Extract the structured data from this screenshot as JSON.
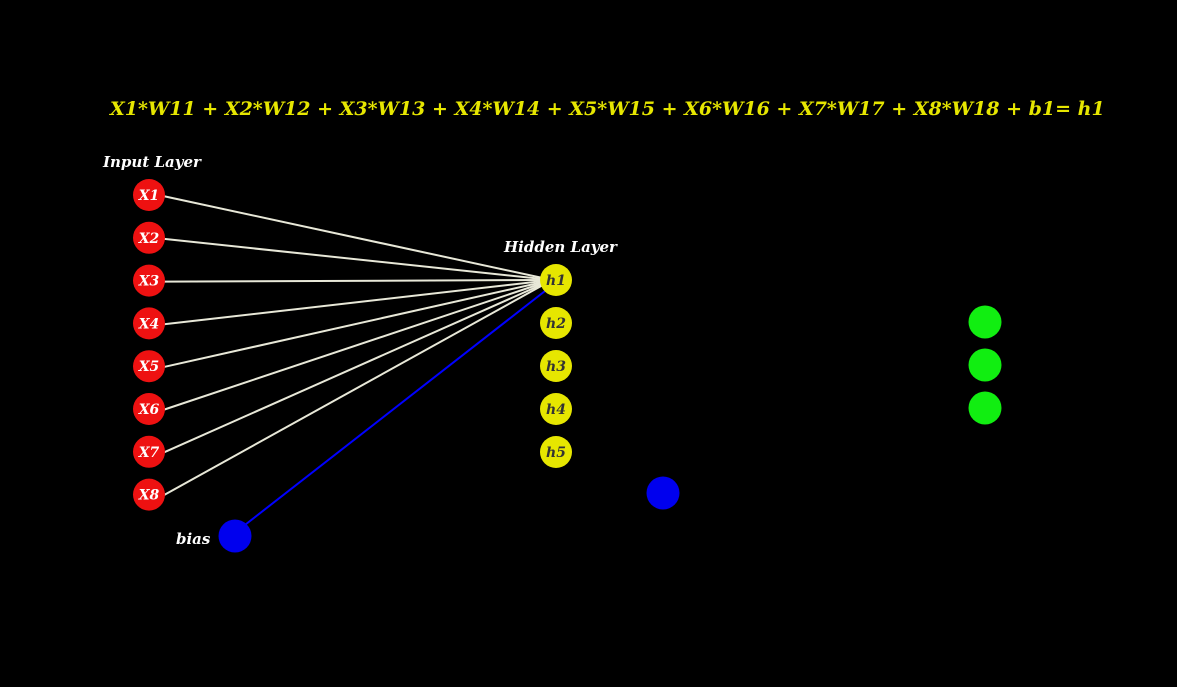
{
  "equation": "X1*W11 + X2*W12 + X3*W13 + X4*W14 + X5*W15 + X6*W16 + X7*W17 + X8*W18 + b1= h1",
  "labels": {
    "input_layer": "Input Layer",
    "hidden_layer": "Hidden Layer",
    "bias": "bias"
  },
  "input_nodes": [
    "X1",
    "X2",
    "X3",
    "X4",
    "X5",
    "X6",
    "X7",
    "X8"
  ],
  "hidden_nodes": [
    "h1",
    "h2",
    "h3",
    "h4",
    "h5"
  ],
  "output_node_count": 3,
  "colors": {
    "background": "#000000",
    "input_node": "#ee1111",
    "hidden_node": "#e6e600",
    "output_node": "#11ee11",
    "bias_node": "#0000ee",
    "connection": "#e8e8d8",
    "bias_connection": "#0000ff",
    "equation": "#e6e600",
    "label": "#ffffff"
  }
}
